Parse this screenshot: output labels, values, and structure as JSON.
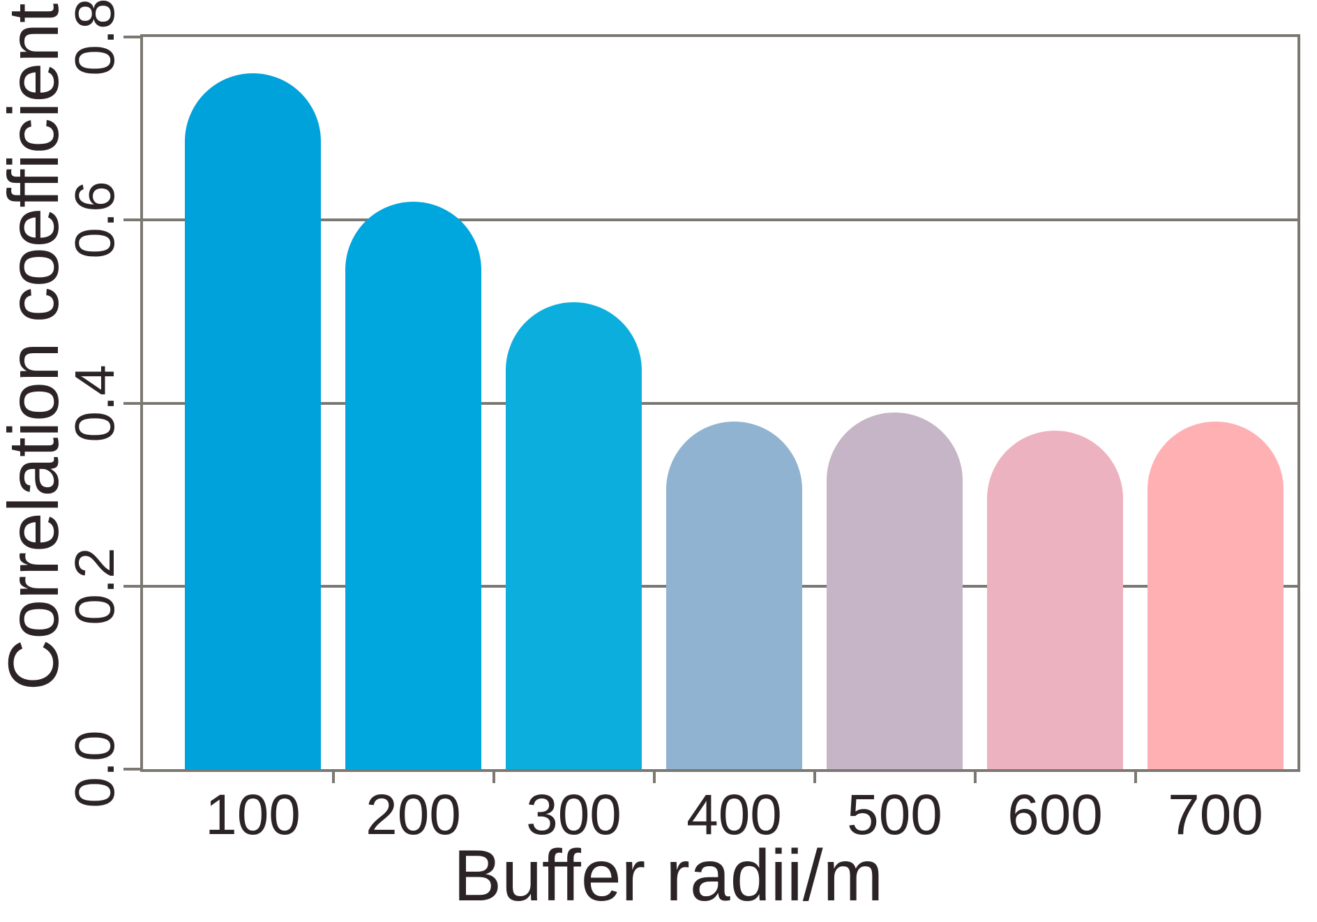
{
  "chart_data": {
    "type": "bar",
    "categories": [
      "100",
      "200",
      "300",
      "400",
      "500",
      "600",
      "700"
    ],
    "values": [
      0.76,
      0.62,
      0.51,
      0.38,
      0.39,
      0.37,
      0.38
    ],
    "bar_colors": [
      "#00A2DC",
      "#00A6DE",
      "#0CAEDE",
      "#8FB3D0",
      "#C5B5C6",
      "#EDB2BF",
      "#FFB0B2"
    ],
    "title": "",
    "xlabel": "Buffer radii/m",
    "ylabel": "Correlation coefficient",
    "ylim": [
      0,
      0.8
    ],
    "yticks": [
      "0.0",
      "0.2",
      "0.4",
      "0.6",
      "0.8"
    ],
    "grid": true,
    "legend": false,
    "bar_style": "rounded-top",
    "frame_color": "#7b7872",
    "text_color": "#2b2325"
  }
}
